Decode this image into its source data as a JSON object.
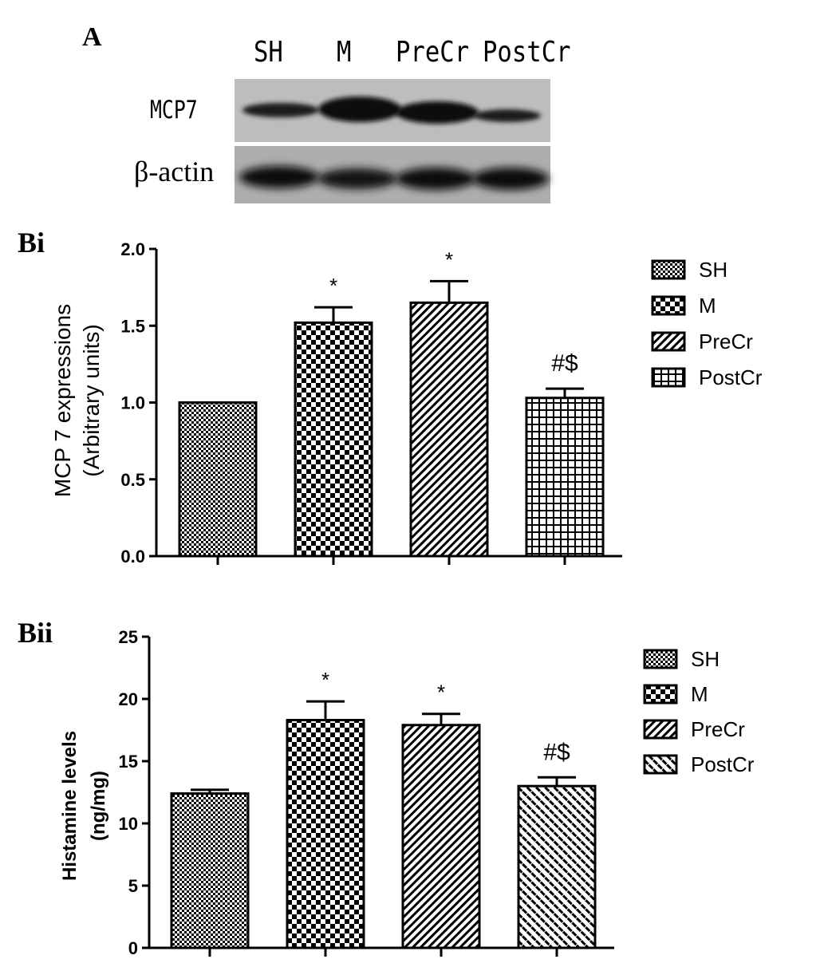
{
  "panel_a": {
    "letter": "A",
    "lanes": [
      "SH",
      "M",
      "PreCr",
      "PostCr"
    ],
    "rows": [
      "MCP7",
      "β-actin"
    ]
  },
  "chart_data": [
    {
      "type": "bar",
      "panel_letter": "Bi",
      "categories": [
        "SH",
        "M",
        "PreCr",
        "PostCr"
      ],
      "values": [
        1.0,
        1.52,
        1.65,
        1.03
      ],
      "errors": [
        0.0,
        0.1,
        0.14,
        0.06
      ],
      "annotations": [
        "",
        "*",
        "*",
        "#$"
      ],
      "ylabel_line1": "MCP 7 expressions",
      "ylabel_line2": "(Arbitrary units)",
      "ylim": [
        0,
        2.0
      ],
      "yticks": [
        "0.0",
        "0.5",
        "1.0",
        "1.5",
        "2.0"
      ],
      "legend": [
        "SH",
        "M",
        "PreCr",
        "PostCr"
      ],
      "legend_position": "right",
      "patterns": [
        "fine-check",
        "checker",
        "diagonal",
        "grid"
      ]
    },
    {
      "type": "bar",
      "panel_letter": "Bii",
      "categories": [
        "SH",
        "M",
        "PreCr",
        "PostCr"
      ],
      "values": [
        12.4,
        18.3,
        17.9,
        13.0
      ],
      "errors": [
        0.3,
        1.5,
        0.9,
        0.7
      ],
      "annotations": [
        "",
        "*",
        "*",
        "#$"
      ],
      "ylabel_line1": "Histamine levels",
      "ylabel_line2": "(ng/mg)",
      "ylim": [
        0,
        25
      ],
      "yticks": [
        "0",
        "5",
        "10",
        "15",
        "20",
        "25"
      ],
      "legend": [
        "SH",
        "M",
        "PreCr",
        "PostCr"
      ],
      "legend_position": "right",
      "patterns": [
        "fine-check",
        "checker",
        "diagonal",
        "hatch"
      ]
    }
  ]
}
